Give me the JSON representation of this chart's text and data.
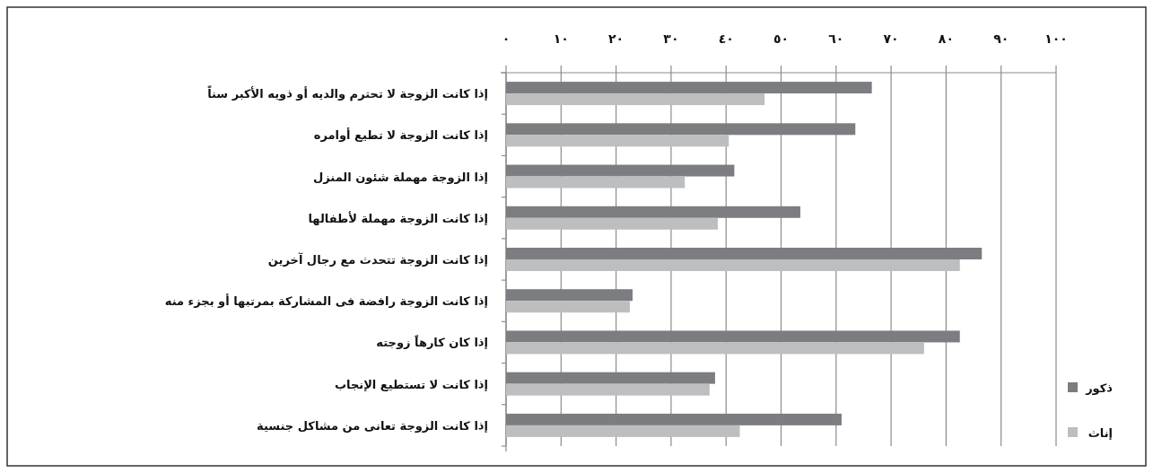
{
  "chart_data": {
    "type": "bar",
    "orientation": "horizontal",
    "categories": [
      "إذا كانت الزوجة لا تحترم والديه أو ذويه الأكبر سناً",
      "إذا كانت الزوجة لا تطيع أوامره",
      "إذا الزوجة مهملة شئون المنزل",
      "إذا كانت الزوجة مهملة لأطفالها",
      "إذا كانت الزوجة تتحدث مع رجال آخرين",
      "إذا كانت الزوجة رافضة فى المشاركة بمرتبها أو بجزء منه",
      "إذا كان كارهاً زوجته",
      "إذا كانت لا تستطيع الإنجاب",
      "إذا كانت الزوجة تعانى من مشاكل جنسية"
    ],
    "series": [
      {
        "name": "ذكور",
        "color": "#7c7d81",
        "values": [
          66.5,
          63.5,
          41.5,
          53.5,
          86.5,
          23,
          82.5,
          38,
          61
        ]
      },
      {
        "name": "إناث",
        "color": "#bdbec0",
        "values": [
          47,
          40.5,
          32.5,
          38.5,
          82.5,
          22.5,
          76,
          37,
          42.5
        ]
      }
    ],
    "xlim": [
      0,
      100
    ],
    "xticks": [
      {
        "value": 0,
        "label": "٠"
      },
      {
        "value": 10,
        "label": "١٠"
      },
      {
        "value": 20,
        "label": "٢٠"
      },
      {
        "value": 30,
        "label": "٣٠"
      },
      {
        "value": 40,
        "label": "٤٠"
      },
      {
        "value": 50,
        "label": "٥٠"
      },
      {
        "value": 60,
        "label": "٦٠"
      },
      {
        "value": 70,
        "label": "٧٠"
      },
      {
        "value": 80,
        "label": "٨٠"
      },
      {
        "value": 90,
        "label": "٩٠"
      },
      {
        "value": 100,
        "label": "١٠٠"
      }
    ],
    "grid": "x",
    "legend": "right"
  }
}
